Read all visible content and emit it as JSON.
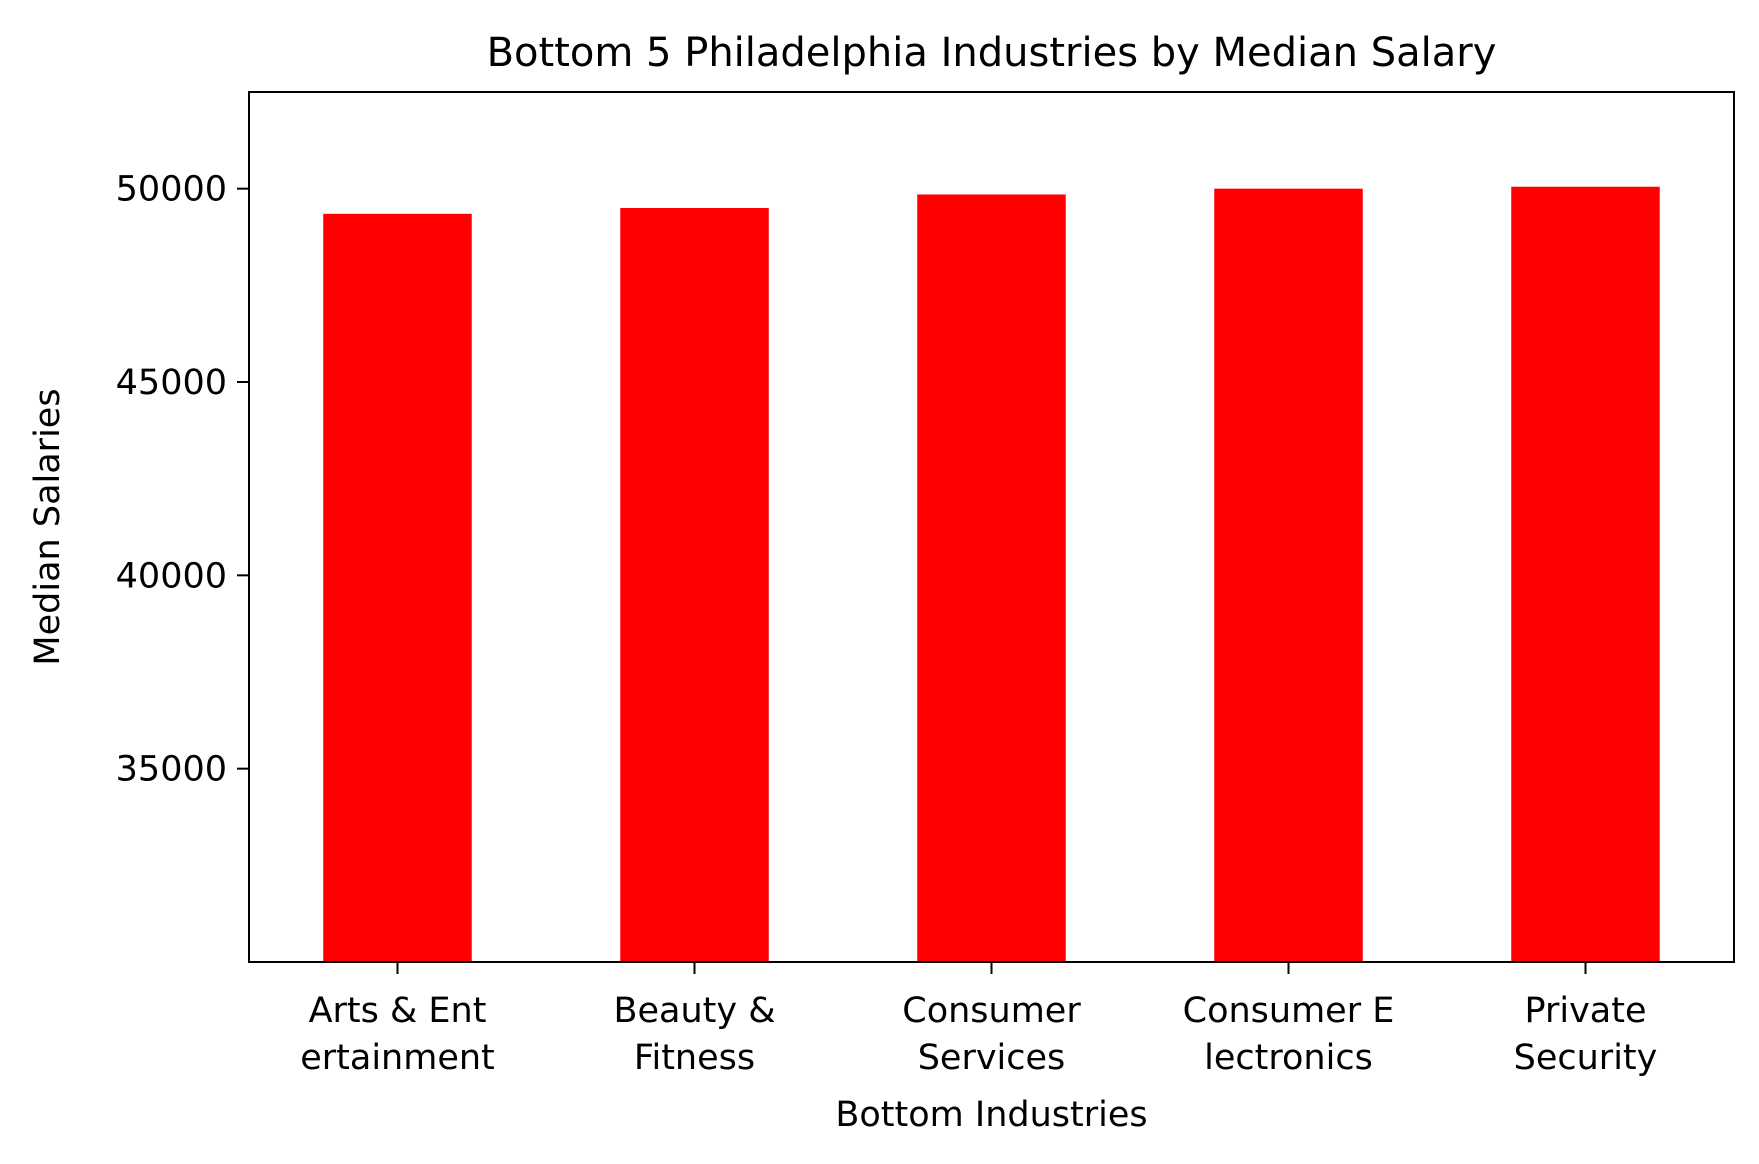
{
  "chart_data": {
    "type": "bar",
    "title": "Bottom 5 Philadelphia Industries by Median Salary",
    "xlabel": "Bottom Industries",
    "ylabel": "Median Salaries",
    "categories": [
      [
        "Arts & Ent",
        "ertainment"
      ],
      [
        "Beauty &",
        "Fitness"
      ],
      [
        "Consumer",
        "Services"
      ],
      [
        "Consumer E",
        "lectronics"
      ],
      [
        "Private",
        "Security"
      ]
    ],
    "values": [
      49350,
      49500,
      49850,
      50000,
      50050
    ],
    "ylim": [
      30000,
      52500
    ],
    "yticks": [
      35000,
      40000,
      45000,
      50000
    ],
    "ytick_labels": [
      "35000",
      "40000",
      "45000",
      "50000"
    ],
    "bar_color": "#ff0000",
    "grid": false,
    "legend": "none"
  }
}
